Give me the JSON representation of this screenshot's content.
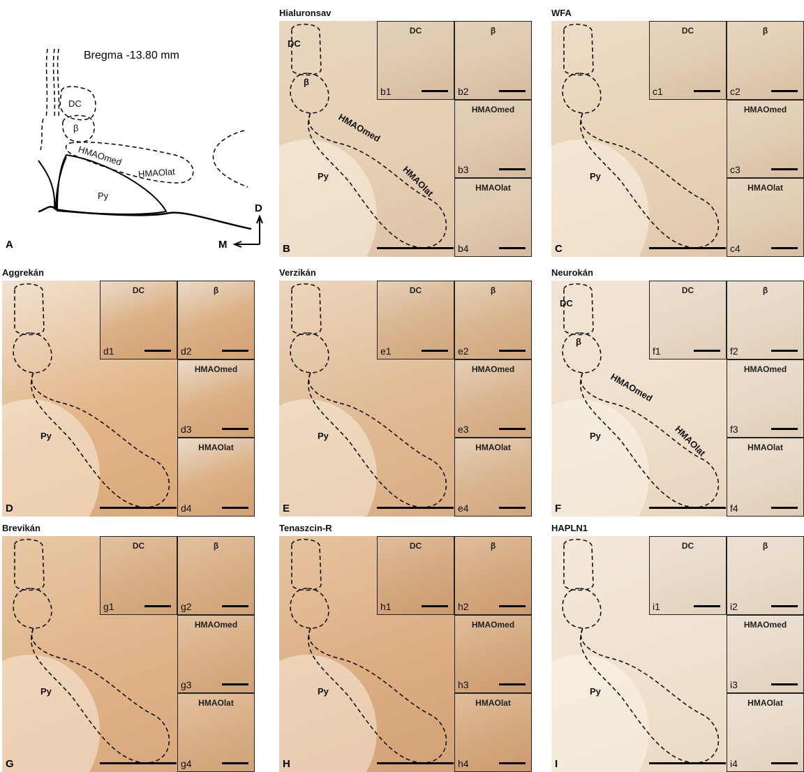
{
  "panel_a": {
    "letter": "A",
    "bregma": "Bregma -13.80 mm",
    "dc": "DC",
    "beta": "β",
    "hmaomed": "HMAOmed",
    "hmaolat": "HMAOlat",
    "py": "Py",
    "dorsal": "D",
    "medial": "M"
  },
  "panels": [
    {
      "letter": "B",
      "title": "Hialuronsav",
      "regions": {
        "dc": "DC",
        "beta": "β",
        "hmaomed": "HMAOmed",
        "hmaolat": "HMAOlat",
        "py": "Py"
      },
      "insets": [
        {
          "label": "DC",
          "id": "b1"
        },
        {
          "label": "β",
          "id": "b2"
        },
        {
          "label": "HMAOmed",
          "id": "b3"
        },
        {
          "label": "HMAOlat",
          "id": "b4"
        }
      ]
    },
    {
      "letter": "C",
      "title": "WFA",
      "regions": {
        "py": "Py"
      },
      "insets": [
        {
          "label": "DC",
          "id": "c1"
        },
        {
          "label": "β",
          "id": "c2"
        },
        {
          "label": "HMAOmed",
          "id": "c3"
        },
        {
          "label": "HMAOlat",
          "id": "c4"
        }
      ]
    },
    {
      "letter": "D",
      "title": "Aggrekán",
      "regions": {
        "py": "Py"
      },
      "insets": [
        {
          "label": "DC",
          "id": "d1"
        },
        {
          "label": "β",
          "id": "d2"
        },
        {
          "label": "HMAOmed",
          "id": "d3"
        },
        {
          "label": "HMAOlat",
          "id": "d4"
        }
      ]
    },
    {
      "letter": "E",
      "title": "Verzikán",
      "regions": {
        "py": "Py"
      },
      "insets": [
        {
          "label": "DC",
          "id": "e1"
        },
        {
          "label": "β",
          "id": "e2"
        },
        {
          "label": "HMAOmed",
          "id": "e3"
        },
        {
          "label": "HMAOlat",
          "id": "e4"
        }
      ]
    },
    {
      "letter": "F",
      "title": "Neurokán",
      "regions": {
        "dc": "DC",
        "beta": "β",
        "hmaomed": "HMAOmed",
        "hmaolat": "HMAOlat",
        "py": "Py"
      },
      "insets": [
        {
          "label": "DC",
          "id": "f1"
        },
        {
          "label": "β",
          "id": "f2"
        },
        {
          "label": "HMAOmed",
          "id": "f3"
        },
        {
          "label": "HMAOlat",
          "id": "f4"
        }
      ]
    },
    {
      "letter": "G",
      "title": "Brevikán",
      "regions": {
        "py": "Py"
      },
      "insets": [
        {
          "label": "DC",
          "id": "g1"
        },
        {
          "label": "β",
          "id": "g2"
        },
        {
          "label": "HMAOmed",
          "id": "g3"
        },
        {
          "label": "HMAOlat",
          "id": "g4"
        }
      ]
    },
    {
      "letter": "H",
      "title": "Tenaszcin-R",
      "regions": {
        "py": "Py"
      },
      "insets": [
        {
          "label": "DC",
          "id": "h1"
        },
        {
          "label": "β",
          "id": "h2"
        },
        {
          "label": "HMAOmed",
          "id": "h3"
        },
        {
          "label": "HMAOlat",
          "id": "h4"
        }
      ]
    },
    {
      "letter": "I",
      "title": "HAPLN1",
      "regions": {
        "py": "Py"
      },
      "insets": [
        {
          "label": "DC",
          "id": "i1"
        },
        {
          "label": "β",
          "id": "i2"
        },
        {
          "label": "HMAOmed",
          "id": "i3"
        },
        {
          "label": "HMAOlat",
          "id": "i4"
        }
      ]
    }
  ]
}
